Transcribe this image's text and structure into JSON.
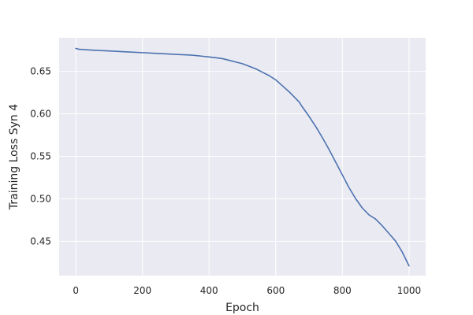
{
  "chart_data": {
    "type": "line",
    "title": "",
    "xlabel": "Epoch",
    "ylabel": "Training Loss Syn 4",
    "xlim": [
      -50,
      1050
    ],
    "ylim": [
      0.4095,
      0.6895
    ],
    "xticks": [
      0,
      200,
      400,
      600,
      800,
      1000
    ],
    "yticks": [
      0.45,
      0.5,
      0.55,
      0.6,
      0.65
    ],
    "grid": true,
    "legend": "none",
    "colors": {
      "background": "#eaeaf2",
      "grid": "#ffffff",
      "line": "#4c72b0",
      "text": "#262626"
    },
    "series": [
      {
        "color": "#4c72b0",
        "x": [
          0,
          10,
          50,
          100,
          150,
          200,
          250,
          300,
          350,
          400,
          420,
          440,
          460,
          480,
          500,
          520,
          540,
          560,
          580,
          600,
          620,
          640,
          660,
          670,
          680,
          700,
          720,
          740,
          760,
          780,
          800,
          820,
          840,
          860,
          880,
          900,
          910,
          920,
          940,
          960,
          980,
          1000
        ],
        "y": [
          0.677,
          0.676,
          0.675,
          0.674,
          0.673,
          0.672,
          0.671,
          0.67,
          0.669,
          0.667,
          0.666,
          0.665,
          0.663,
          0.661,
          0.659,
          0.656,
          0.653,
          0.649,
          0.645,
          0.64,
          0.633,
          0.626,
          0.618,
          0.614,
          0.608,
          0.597,
          0.585,
          0.572,
          0.558,
          0.543,
          0.528,
          0.513,
          0.5,
          0.489,
          0.481,
          0.476,
          0.472,
          0.468,
          0.459,
          0.45,
          0.437,
          0.421
        ]
      }
    ]
  }
}
